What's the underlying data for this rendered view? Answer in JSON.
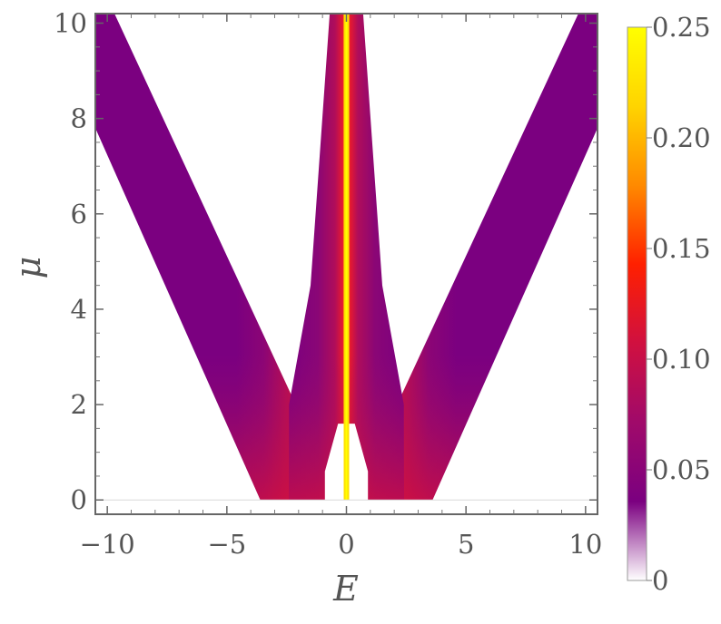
{
  "chart_data": {
    "type": "heatmap",
    "title": "",
    "xlabel": "E",
    "ylabel": "μ",
    "xlim": [
      -10.5,
      10.5
    ],
    "ylim": [
      -0.3,
      10.2
    ],
    "x_ticks": [
      "−10",
      "−5",
      "0",
      "5",
      "10"
    ],
    "x_tick_values": [
      -10,
      -5,
      0,
      5,
      10
    ],
    "y_ticks": [
      "0",
      "2",
      "4",
      "6",
      "8",
      "10"
    ],
    "y_tick_values": [
      0,
      2,
      4,
      6,
      8,
      10
    ],
    "colorbar": {
      "min": 0,
      "max": 0.25,
      "ticks": [
        "0",
        "0.05",
        "0.10",
        "0.15",
        "0.20",
        "0.25"
      ],
      "tick_values": [
        0,
        0.05,
        0.1,
        0.15,
        0.2,
        0.25
      ],
      "colormap": [
        "#ffffff",
        "#7b0080",
        "#a00a6a",
        "#d01040",
        "#ff2000",
        "#ff8a00",
        "#ffd400",
        "#ffff00"
      ]
    },
    "regions": [
      {
        "name": "left-outer-band",
        "polygon": [
          [
            -10.5,
            7.8
          ],
          [
            -3.6,
            0
          ],
          [
            -2.3,
            0
          ],
          [
            -2.3,
            2.2
          ],
          [
            -9.7,
            10.2
          ],
          [
            -10.5,
            10.2
          ]
        ]
      },
      {
        "name": "right-outer-band",
        "polygon": [
          [
            10.5,
            7.8
          ],
          [
            3.6,
            0
          ],
          [
            2.3,
            0
          ],
          [
            2.3,
            2.2
          ],
          [
            9.7,
            10.2
          ],
          [
            10.5,
            10.2
          ]
        ]
      },
      {
        "name": "central-band",
        "polygon": [
          [
            -2.4,
            0
          ],
          [
            -2.4,
            2.0
          ],
          [
            -1.5,
            4.5
          ],
          [
            -0.7,
            10.2
          ],
          [
            0.7,
            10.2
          ],
          [
            1.5,
            4.5
          ],
          [
            2.4,
            2.0
          ],
          [
            2.4,
            0
          ]
        ]
      }
    ],
    "central_line": {
      "E": 0,
      "value": 0.25
    }
  }
}
